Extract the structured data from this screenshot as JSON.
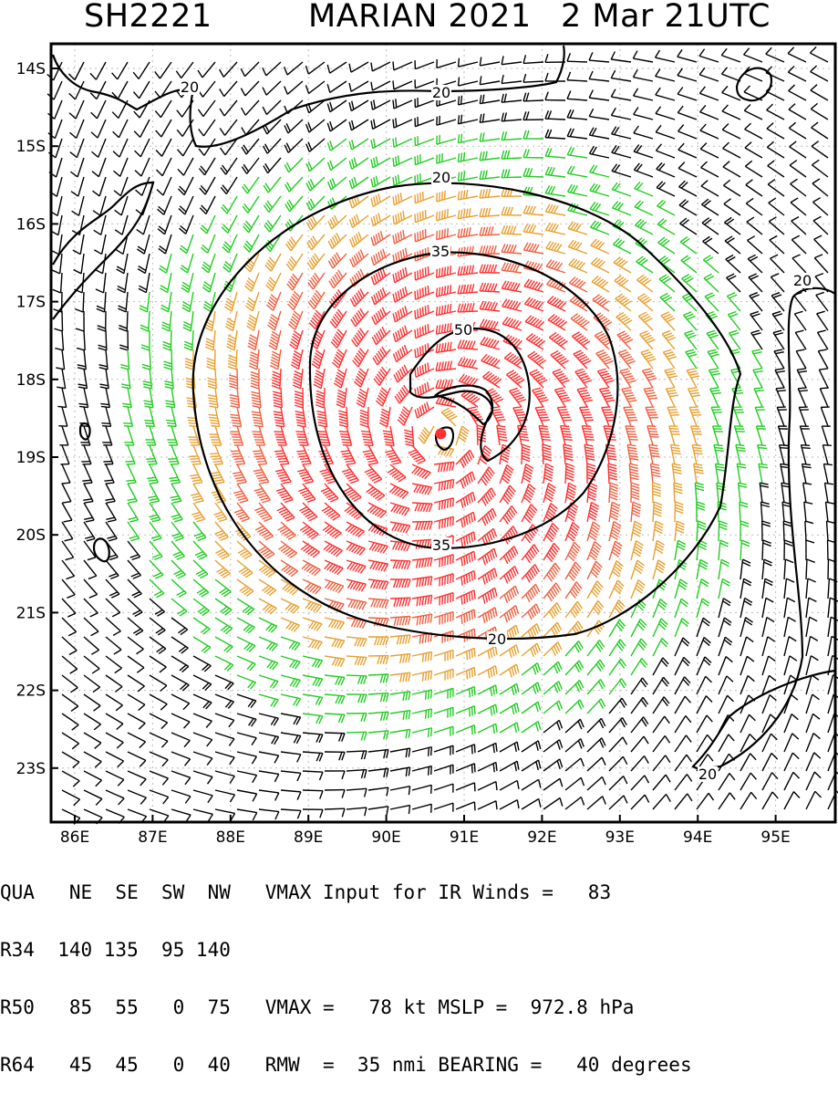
{
  "header": {
    "storm_id": "SH2221",
    "storm_name_year": "MARIAN 2021",
    "datetime": "2 Mar 21UTC"
  },
  "map": {
    "lat_labels": [
      "14S",
      "15S",
      "16S",
      "17S",
      "18S",
      "19S",
      "20S",
      "21S",
      "22S",
      "23S"
    ],
    "lon_labels": [
      "86E",
      "87E",
      "88E",
      "89E",
      "90E",
      "91E",
      "92E",
      "93E",
      "94E",
      "95E"
    ],
    "contours": [
      {
        "level": "20",
        "color": "#000000"
      },
      {
        "level": "35",
        "color": "#000000"
      },
      {
        "level": "50",
        "color": "#000000"
      }
    ],
    "contour_labels": [
      "20",
      "20",
      "20",
      "20",
      "20",
      "20",
      "35",
      "35",
      "50"
    ],
    "center": {
      "lat": -18.7,
      "lon": 90.7
    },
    "barb_colors": {
      "lt20": "#000000",
      "20to34": "#22cc22",
      "35to49": "#e8a030",
      "50to63": "#f06040",
      "64plus": "#ff3030"
    }
  },
  "footer": {
    "row1": "QUA   NE  SE  SW  NW   VMAX Input for IR Winds =   83",
    "row2": "R34  140 135  95 140",
    "row3": "R50   85  55   0  75   VMAX =   78 kt MSLP =  972.8 hPa",
    "row4": "R64   45  45   0  40   RMW  =  35 nmi BEARING =   40 degrees"
  }
}
